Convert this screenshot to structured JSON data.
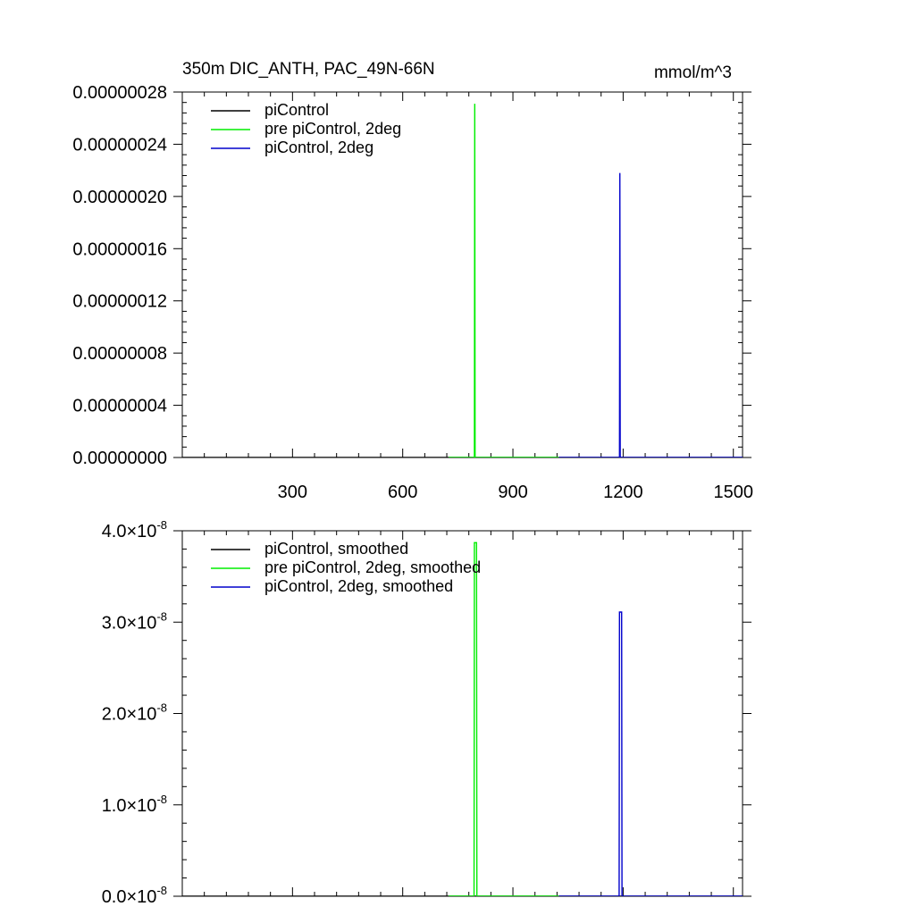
{
  "chart_data": [
    {
      "type": "line",
      "title": "350m DIC_ANTH, PAC_49N-66N",
      "units": "mmol/m^3",
      "xlim": [
        0,
        1525
      ],
      "ylim": [
        0,
        2.8e-07
      ],
      "x_ticks": [
        300,
        600,
        900,
        1200,
        1500
      ],
      "y_ticks": [
        0,
        4e-08,
        8e-08,
        1.2e-07,
        1.6e-07,
        2e-07,
        2.4e-07,
        2.8e-07
      ],
      "y_tick_labels": [
        "0.00000000",
        "0.00000004",
        "0.00000008",
        "0.00000012",
        "0.00000016",
        "0.00000020",
        "0.00000024",
        "0.00000028"
      ],
      "legend_position": "top-left",
      "series": [
        {
          "name": "piControl",
          "color": "#000000",
          "x": [
            0,
            1525
          ],
          "y": [
            0,
            0
          ]
        },
        {
          "name": "pre piControl, 2deg",
          "color": "#00ee00",
          "x": [
            725,
            795,
            796,
            797,
            1025
          ],
          "y": [
            0,
            0,
            2.71e-07,
            0,
            0
          ]
        },
        {
          "name": "piControl, 2deg",
          "color": "#0000cc",
          "x": [
            1025,
            1190,
            1191,
            1192,
            1525
          ],
          "y": [
            0,
            0,
            2.18e-07,
            0,
            0
          ]
        }
      ]
    },
    {
      "type": "line",
      "xlim": [
        0,
        1525
      ],
      "ylim": [
        0,
        4e-08
      ],
      "x_ticks": [
        300,
        600,
        900,
        1200,
        1500
      ],
      "y_ticks": [
        0,
        1e-08,
        2e-08,
        3e-08,
        4e-08
      ],
      "y_tick_mantissas": [
        "0.0",
        "1.0",
        "2.0",
        "3.0",
        "4.0"
      ],
      "y_tick_base": "×10",
      "y_tick_exponent": "-8",
      "legend_position": "top-left",
      "series": [
        {
          "name": "piControl, smoothed",
          "color": "#000000",
          "x": [
            0,
            1525
          ],
          "y": [
            0,
            0
          ]
        },
        {
          "name": "pre piControl, 2deg, smoothed",
          "color": "#00ee00",
          "x": [
            725,
            794,
            795,
            801,
            802,
            1025
          ],
          "y": [
            0,
            0,
            3.87e-08,
            3.87e-08,
            0,
            0
          ]
        },
        {
          "name": "piControl, 2deg, smoothed",
          "color": "#0000cc",
          "x": [
            1025,
            1189,
            1190,
            1196,
            1197,
            1525
          ],
          "y": [
            0,
            0,
            3.11e-08,
            3.11e-08,
            0,
            0
          ]
        }
      ]
    }
  ]
}
